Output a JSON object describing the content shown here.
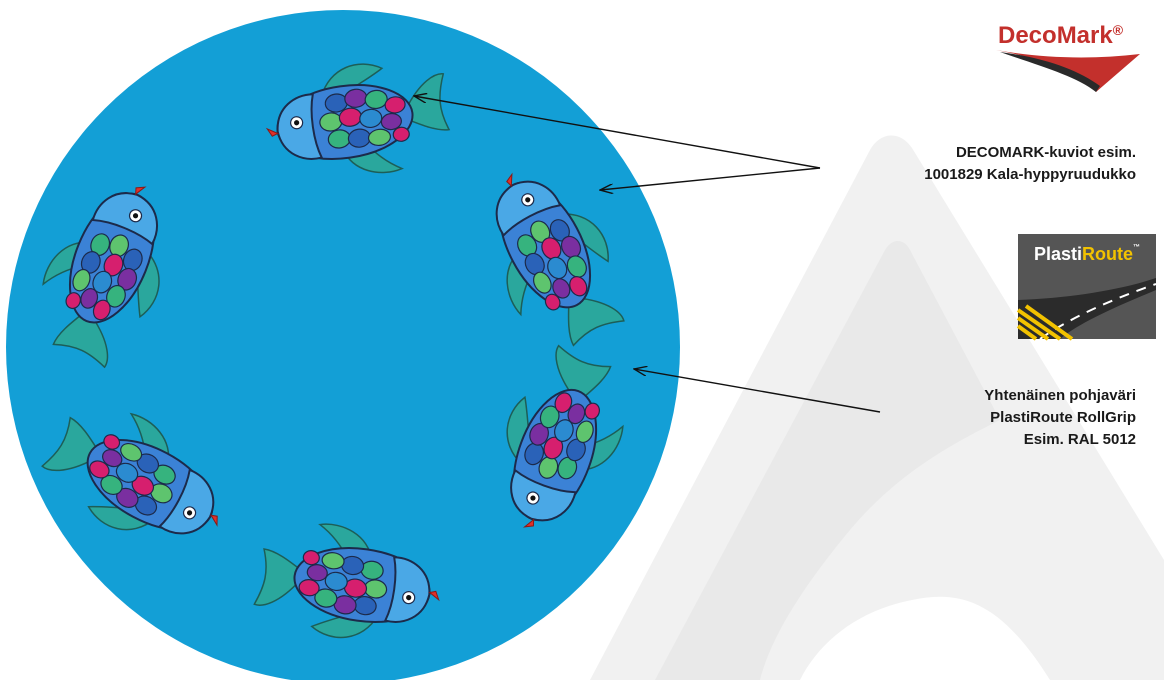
{
  "colors": {
    "circle": "#139fd6",
    "watermark": "#efefef",
    "decomark_red": "#c3302c",
    "decomark_rainbow": [
      "#e52d2d",
      "#f08a1e",
      "#e3c21b",
      "#3fae49",
      "#2b7fc9",
      "#7a3fb0"
    ],
    "fish_body_blue": "#3b82d6",
    "fish_fin_teal": "#2aa79d",
    "fish_scale_colors": [
      "#2a62b8",
      "#7a2fa0",
      "#d61f6e",
      "#36b37e",
      "#2b8bd0",
      "#5ec46e"
    ],
    "plastiroute_yellow": "#f2c200"
  },
  "logos": {
    "decomark": {
      "part1": "Deco",
      "part2": "Mark",
      "reg": "®"
    },
    "plastiroute": {
      "part1": "Plasti",
      "part2": "Route",
      "tm": "™"
    }
  },
  "labels": {
    "decomark_info": {
      "line1": "DECOMARK-kuviot  esim.",
      "line2": "1001829 Kala-hyppyruudukko"
    },
    "base_color_info": {
      "line1": "Yhtenäinen pohjaväri",
      "line2": "PlastiRoute RollGrip",
      "line3": "Esim. RAL 5012"
    }
  },
  "fish": [
    {
      "name": "fish-top"
    },
    {
      "name": "fish-upper-right"
    },
    {
      "name": "fish-lower-right"
    },
    {
      "name": "fish-bottom"
    },
    {
      "name": "fish-lower-left"
    },
    {
      "name": "fish-upper-left"
    }
  ]
}
